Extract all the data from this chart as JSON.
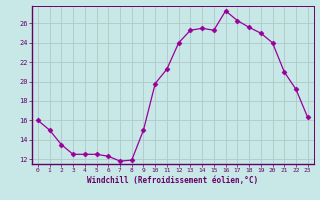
{
  "x": [
    0,
    1,
    2,
    3,
    4,
    5,
    6,
    7,
    8,
    9,
    10,
    11,
    12,
    13,
    14,
    15,
    16,
    17,
    18,
    19,
    20,
    21,
    22,
    23
  ],
  "y": [
    16.0,
    15.0,
    13.5,
    12.5,
    12.5,
    12.5,
    12.3,
    11.8,
    11.9,
    15.0,
    19.8,
    21.3,
    24.0,
    25.3,
    25.5,
    25.3,
    27.3,
    26.3,
    25.6,
    25.0,
    24.0,
    21.0,
    19.2,
    16.3
  ],
  "line_color": "#990099",
  "marker": "D",
  "marker_size": 2.5,
  "bg_color": "#c8e8e8",
  "grid_color": "#b0c8c8",
  "xlabel": "Windchill (Refroidissement éolien,°C)",
  "ylim": [
    11.5,
    27.8
  ],
  "xlim": [
    -0.5,
    23.5
  ],
  "yticks": [
    12,
    14,
    16,
    18,
    20,
    22,
    24,
    26
  ],
  "xticks": [
    0,
    1,
    2,
    3,
    4,
    5,
    6,
    7,
    8,
    9,
    10,
    11,
    12,
    13,
    14,
    15,
    16,
    17,
    18,
    19,
    20,
    21,
    22,
    23
  ],
  "label_color": "#660066",
  "spine_color": "#660066"
}
